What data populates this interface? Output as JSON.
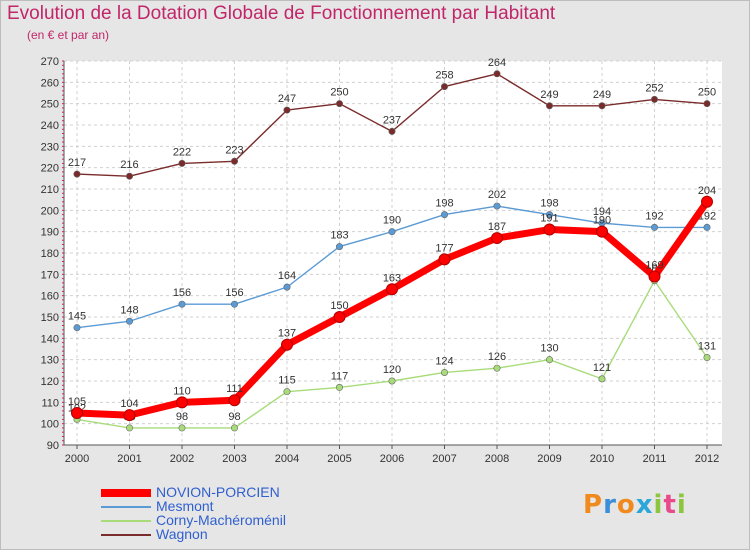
{
  "title": "Evolution de la Dotation Globale de Fonctionnement par Habitant",
  "subtitle": "(en € et par an)",
  "brand": {
    "letters": [
      "P",
      "r",
      "o",
      "x",
      "i",
      "t",
      "i"
    ],
    "colors": [
      "#f08a1f",
      "#3a8fd8",
      "#f08a1f",
      "#2aa6d8",
      "#8cc63f",
      "#e94b8a",
      "#8cc63f"
    ]
  },
  "chart_data": {
    "type": "line",
    "title": "Evolution de la Dotation Globale de Fonctionnement par Habitant",
    "subtitle": "(en € et par an)",
    "x": [
      "2000",
      "2001",
      "2002",
      "2003",
      "2004",
      "2005",
      "2006",
      "2007",
      "2008",
      "2009",
      "2010",
      "2011",
      "2012"
    ],
    "ylim": [
      90,
      270
    ],
    "yticks": [
      90,
      100,
      110,
      120,
      130,
      140,
      150,
      160,
      170,
      180,
      190,
      200,
      210,
      220,
      230,
      240,
      250,
      260,
      270
    ],
    "grid": true,
    "legend_position": "bottom-left",
    "series": [
      {
        "name": "NOVION-PORCIEN",
        "color": "#ff0000",
        "emphasis": true,
        "values": [
          105,
          104,
          110,
          111,
          137,
          150,
          163,
          177,
          187,
          191,
          190,
          169,
          204
        ]
      },
      {
        "name": "Mesmont",
        "color": "#5b9bd5",
        "values": [
          145,
          148,
          156,
          156,
          164,
          183,
          190,
          198,
          202,
          198,
          194,
          192,
          192
        ]
      },
      {
        "name": "Corny-Machéroménil",
        "color": "#a8dc7a",
        "values": [
          102,
          98,
          98,
          98,
          115,
          117,
          120,
          124,
          126,
          130,
          121,
          167,
          131
        ]
      },
      {
        "name": "Wagnon",
        "color": "#7a2b2b",
        "values": [
          217,
          216,
          222,
          223,
          247,
          250,
          237,
          258,
          264,
          249,
          249,
          252,
          250
        ]
      }
    ]
  }
}
